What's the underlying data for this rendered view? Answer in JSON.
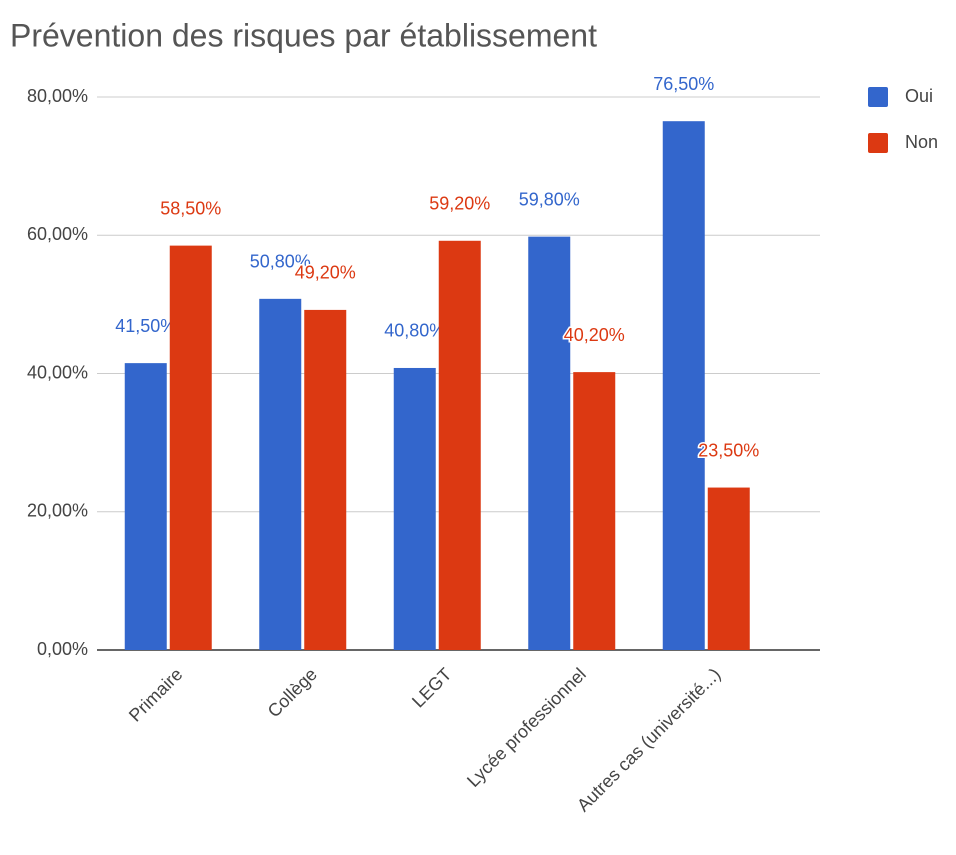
{
  "chart_data": {
    "type": "bar",
    "title": "Prévention des risques par établissement",
    "categories": [
      "Primaire",
      "Collège",
      "LEGT",
      "Lycée professionnel",
      "Autres cas (université...)"
    ],
    "series": [
      {
        "name": "Oui",
        "color": "#3366cc",
        "values": [
          41.5,
          50.8,
          40.8,
          59.8,
          76.5
        ],
        "value_labels": [
          "41,50%",
          "50,80%",
          "40,80%",
          "59,80%",
          "76,50%"
        ]
      },
      {
        "name": "Non",
        "color": "#dc3912",
        "values": [
          58.5,
          49.2,
          59.2,
          40.2,
          23.5
        ],
        "value_labels": [
          "58,50%",
          "49,20%",
          "59,20%",
          "40,20%",
          "23,50%"
        ]
      }
    ],
    "ylim": [
      0,
      80
    ],
    "yticks": [
      {
        "value": 0,
        "label": "0,00%"
      },
      {
        "value": 20,
        "label": "20,00%"
      },
      {
        "value": 40,
        "label": "40,00%"
      },
      {
        "value": 60,
        "label": "60,00%"
      },
      {
        "value": 80,
        "label": "80,00%"
      }
    ],
    "grid": true,
    "legend": "right"
  }
}
